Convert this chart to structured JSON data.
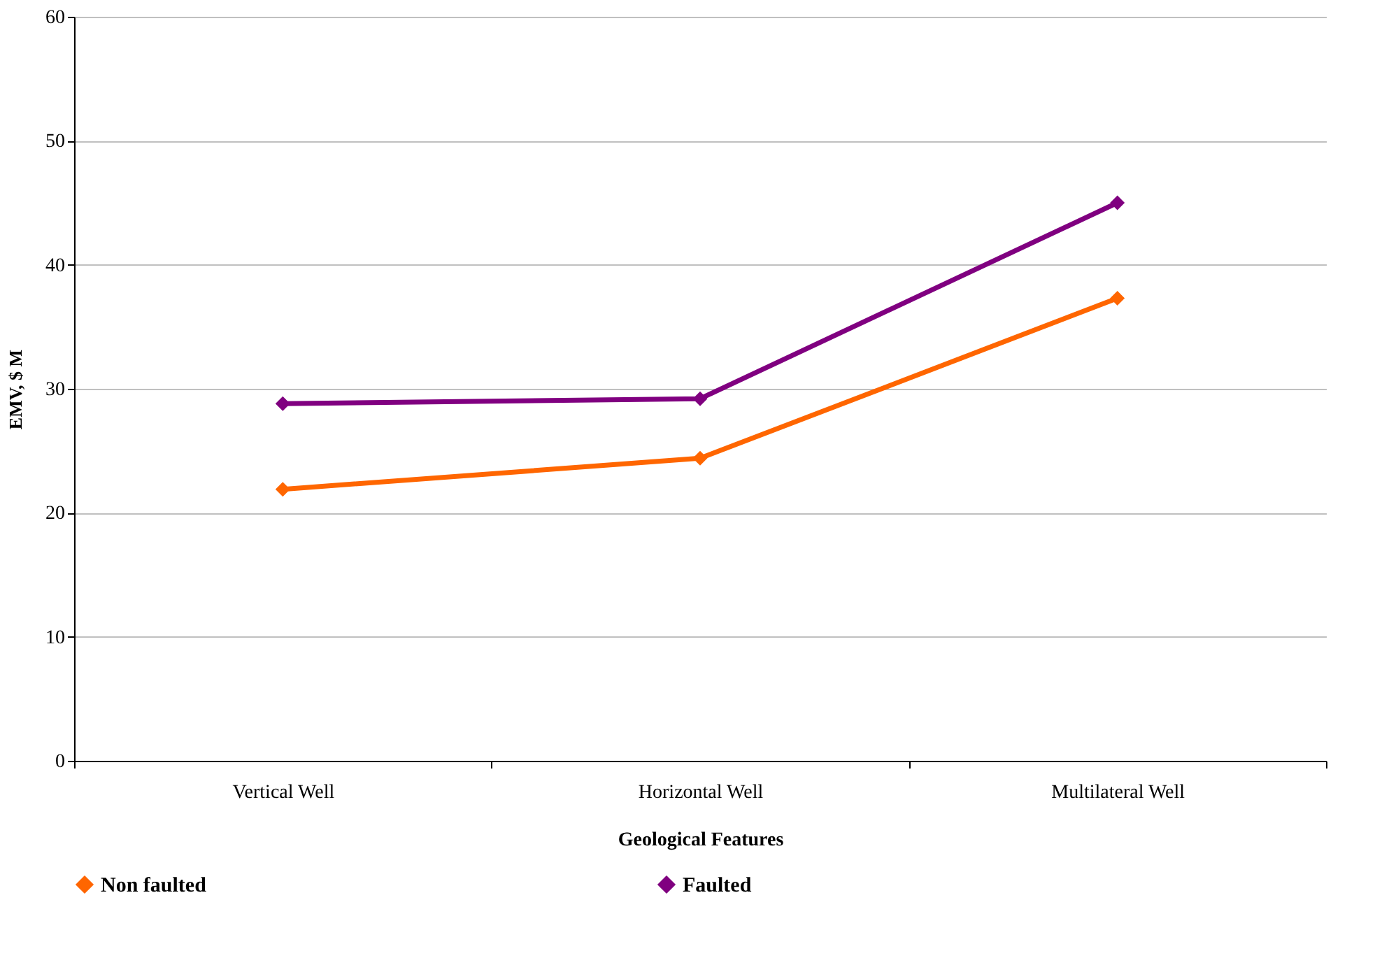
{
  "chart_data": {
    "type": "line",
    "xlabel": "Geological Features",
    "ylabel": "EMV, $ M",
    "categories": [
      "Vertical Well",
      "Horizontal Well",
      "Multilateral Well"
    ],
    "series": [
      {
        "name": "Non faulted",
        "color": "#ff6600",
        "values": [
          21.9,
          24.4,
          37.3
        ]
      },
      {
        "name": "Faulted",
        "color": "#800080",
        "values": [
          28.8,
          29.2,
          45.0
        ]
      }
    ],
    "ylim": [
      0,
      60
    ],
    "yticks": [
      0,
      10,
      20,
      30,
      40,
      50,
      60
    ],
    "grid": "y",
    "legend": "bottom",
    "marker": "diamond",
    "line_style": "solid"
  }
}
